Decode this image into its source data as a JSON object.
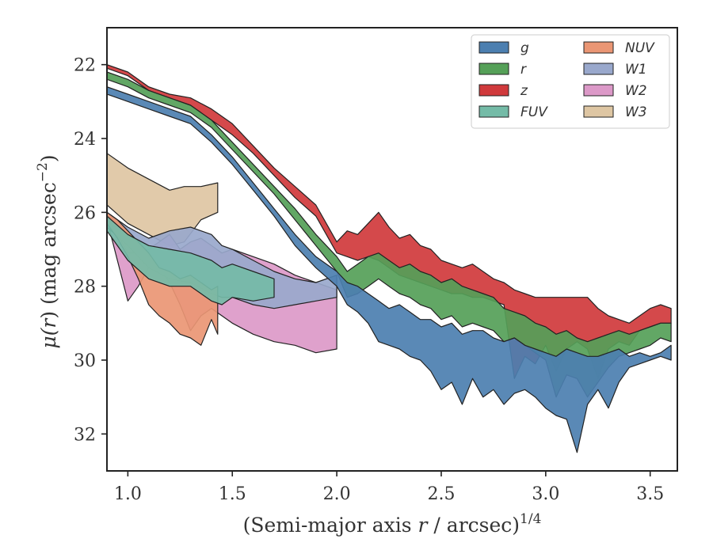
{
  "chart_data": {
    "type": "area",
    "title": "",
    "xlabel": "(Semi-major axis r / arcsec)",
    "xlabel_parts": {
      "pre": "(Semi-major axis ",
      "var": "r",
      "post": " / arcsec)",
      "sup": "1/4"
    },
    "ylabel": "μ(r) (mag arcsec⁻²)",
    "ylabel_parts": {
      "mu": "μ(",
      "var": "r",
      "mid": ") (mag arcsec",
      "sup": "−2",
      "end": ")"
    },
    "xlim": [
      0.9,
      3.63
    ],
    "ylim": [
      33.0,
      21.0
    ],
    "y_inverted": true,
    "xticks": [
      1.0,
      1.5,
      2.0,
      2.5,
      3.0,
      3.5
    ],
    "xtick_labels": [
      "1.0",
      "1.5",
      "2.0",
      "2.5",
      "3.0",
      "3.5"
    ],
    "yticks": [
      22,
      24,
      26,
      28,
      30,
      32
    ],
    "ytick_labels": [
      "22",
      "24",
      "26",
      "28",
      "30",
      "32"
    ],
    "grid": false,
    "legend": {
      "placement": "top-right",
      "columns": 2
    },
    "series": [
      {
        "name": "g",
        "color": "#4c7fb0",
        "x": [
          0.9,
          1.0,
          1.1,
          1.2,
          1.3,
          1.4,
          1.5,
          1.6,
          1.7,
          1.8,
          1.9,
          2.0,
          2.05,
          2.1,
          2.15,
          2.2,
          2.25,
          2.3,
          2.35,
          2.4,
          2.45,
          2.5,
          2.55,
          2.6,
          2.65,
          2.7,
          2.75,
          2.8,
          2.85,
          2.9,
          2.95,
          3.0,
          3.05,
          3.1,
          3.15,
          3.2,
          3.25,
          3.3,
          3.35,
          3.4,
          3.45,
          3.5,
          3.55,
          3.6
        ],
        "y1": [
          22.6,
          22.8,
          23.0,
          23.2,
          23.4,
          23.9,
          24.5,
          25.2,
          25.9,
          26.6,
          27.2,
          27.6,
          27.9,
          28.0,
          28.2,
          28.4,
          28.6,
          28.5,
          28.7,
          28.9,
          28.9,
          29.1,
          29.0,
          29.3,
          29.2,
          29.2,
          29.4,
          29.5,
          29.4,
          29.6,
          29.7,
          29.8,
          29.9,
          29.7,
          29.8,
          29.9,
          29.9,
          29.8,
          29.7,
          29.9,
          29.8,
          29.9,
          29.8,
          29.6
        ],
        "y2": [
          22.8,
          23.0,
          23.2,
          23.4,
          23.6,
          24.1,
          24.7,
          25.4,
          26.1,
          26.9,
          27.5,
          28.0,
          28.5,
          28.7,
          29.0,
          29.5,
          29.6,
          29.7,
          29.9,
          30.0,
          30.3,
          30.8,
          30.6,
          31.2,
          30.5,
          31.0,
          30.8,
          31.2,
          30.9,
          30.8,
          31.0,
          31.3,
          31.5,
          31.6,
          32.5,
          31.2,
          30.8,
          31.3,
          30.6,
          30.2,
          30.1,
          30.0,
          29.9,
          30.0
        ]
      },
      {
        "name": "r",
        "color": "#55a058",
        "x": [
          0.9,
          1.0,
          1.1,
          1.2,
          1.3,
          1.4,
          1.5,
          1.6,
          1.7,
          1.8,
          1.9,
          2.0,
          2.05,
          2.1,
          2.15,
          2.2,
          2.25,
          2.3,
          2.35,
          2.4,
          2.45,
          2.5,
          2.55,
          2.6,
          2.65,
          2.7,
          2.75,
          2.8,
          2.85,
          2.9,
          2.95,
          3.0,
          3.05,
          3.1,
          3.15,
          3.2,
          3.25,
          3.3,
          3.35,
          3.4,
          3.45,
          3.5,
          3.55,
          3.6
        ],
        "y1": [
          22.2,
          22.4,
          22.7,
          22.9,
          23.1,
          23.5,
          24.1,
          24.7,
          25.3,
          25.9,
          26.6,
          27.2,
          27.6,
          27.4,
          27.2,
          27.1,
          27.3,
          27.5,
          27.4,
          27.6,
          27.7,
          27.9,
          27.8,
          28.0,
          28.1,
          28.2,
          28.3,
          28.6,
          28.7,
          28.8,
          29.0,
          29.1,
          29.3,
          29.2,
          29.4,
          29.5,
          29.4,
          29.3,
          29.2,
          29.3,
          29.2,
          29.1,
          29.0,
          29.0
        ],
        "y2": [
          22.4,
          22.6,
          22.9,
          23.1,
          23.3,
          23.7,
          24.3,
          24.9,
          25.5,
          26.2,
          26.9,
          27.6,
          28.3,
          28.2,
          28.0,
          27.8,
          28.0,
          28.2,
          28.3,
          28.5,
          28.6,
          28.9,
          28.8,
          29.1,
          29.0,
          29.1,
          29.2,
          29.5,
          29.4,
          29.6,
          29.8,
          30.0,
          31.0,
          30.4,
          30.5,
          31.0,
          30.6,
          30.2,
          29.9,
          29.8,
          29.7,
          29.6,
          29.4,
          29.5
        ]
      },
      {
        "name": "z",
        "color": "#d03a3c",
        "x": [
          0.9,
          1.0,
          1.1,
          1.2,
          1.3,
          1.4,
          1.5,
          1.6,
          1.7,
          1.8,
          1.9,
          2.0,
          2.05,
          2.1,
          2.15,
          2.2,
          2.25,
          2.3,
          2.35,
          2.4,
          2.45,
          2.5,
          2.55,
          2.6,
          2.65,
          2.7,
          2.75,
          2.8,
          2.85,
          2.9,
          2.95,
          3.0,
          3.05,
          3.1,
          3.15,
          3.2,
          3.25,
          3.3,
          3.35,
          3.4,
          3.45,
          3.5,
          3.55,
          3.6
        ],
        "y1": [
          22.0,
          22.2,
          22.6,
          22.8,
          22.9,
          23.2,
          23.6,
          24.2,
          24.8,
          25.3,
          25.8,
          26.8,
          26.5,
          26.6,
          26.3,
          26.0,
          26.4,
          26.7,
          26.6,
          26.9,
          27.0,
          27.3,
          27.4,
          27.5,
          27.4,
          27.6,
          27.8,
          27.9,
          28.1,
          28.2,
          28.3,
          28.3,
          28.3,
          28.3,
          28.3,
          28.3,
          28.6,
          28.8,
          28.9,
          29.0,
          28.8,
          28.6,
          28.5,
          28.6
        ],
        "y2": [
          22.1,
          22.3,
          22.7,
          22.9,
          23.1,
          23.5,
          23.9,
          24.4,
          25.0,
          25.6,
          26.1,
          27.1,
          27.2,
          27.3,
          27.2,
          27.3,
          27.5,
          27.7,
          27.8,
          27.9,
          28.0,
          28.1,
          28.2,
          28.2,
          28.3,
          28.3,
          28.4,
          28.5,
          30.5,
          29.9,
          30.1,
          29.6,
          30.3,
          29.7,
          29.5,
          29.7,
          30.5,
          29.7,
          29.5,
          29.6,
          29.2,
          29.1,
          29.0,
          29.0
        ]
      },
      {
        "name": "FUV",
        "color": "#74bba7",
        "x": [
          0.9,
          1.0,
          1.1,
          1.2,
          1.3,
          1.4,
          1.45,
          1.5,
          1.6,
          1.7
        ],
        "y1": [
          26.1,
          26.6,
          26.9,
          27.0,
          27.1,
          27.3,
          27.5,
          27.4,
          27.6,
          27.8
        ],
        "y2": [
          26.5,
          27.3,
          27.8,
          28.0,
          28.0,
          28.4,
          28.5,
          28.3,
          28.4,
          28.3
        ]
      },
      {
        "name": "NUV",
        "color": "#ea9674",
        "x": [
          0.9,
          0.95,
          1.0,
          1.05,
          1.1,
          1.15,
          1.2,
          1.25,
          1.3,
          1.35,
          1.4,
          1.43
        ],
        "y1": [
          26.0,
          26.2,
          26.5,
          26.8,
          27.1,
          27.5,
          27.6,
          27.8,
          27.7,
          27.9,
          28.1,
          28.0
        ],
        "y2": [
          26.3,
          26.7,
          27.2,
          27.8,
          28.5,
          28.8,
          29.0,
          29.3,
          29.4,
          29.6,
          28.9,
          29.3
        ]
      },
      {
        "name": "W1",
        "color": "#99a8cc",
        "x": [
          0.9,
          1.0,
          1.1,
          1.2,
          1.3,
          1.4,
          1.45,
          1.5,
          1.6,
          1.7,
          1.8,
          1.9,
          2.0
        ],
        "y1": [
          26.0,
          26.4,
          26.7,
          26.5,
          26.4,
          26.6,
          26.9,
          27.0,
          27.3,
          27.6,
          27.8,
          27.9,
          27.7
        ],
        "y2": [
          26.4,
          26.9,
          27.5,
          27.8,
          27.9,
          28.2,
          28.3,
          28.3,
          28.5,
          28.6,
          28.5,
          28.4,
          28.3
        ]
      },
      {
        "name": "W2",
        "color": "#dc99c8",
        "x": [
          0.9,
          0.95,
          1.0,
          1.05,
          1.1,
          1.15,
          1.2,
          1.25,
          1.3,
          1.35,
          1.4,
          1.45,
          1.5,
          1.6,
          1.7,
          1.8,
          1.9,
          2.0
        ],
        "y1": [
          26.1,
          26.6,
          27.1,
          27.1,
          27.0,
          26.8,
          26.6,
          27.0,
          26.8,
          26.7,
          26.9,
          27.1,
          27.0,
          27.2,
          27.4,
          27.7,
          27.9,
          28.1
        ],
        "y2": [
          26.2,
          27.3,
          28.4,
          28.0,
          27.5,
          27.5,
          27.9,
          28.5,
          29.2,
          28.8,
          28.6,
          28.8,
          29.0,
          29.3,
          29.5,
          29.6,
          29.8,
          29.7
        ]
      },
      {
        "name": "W3",
        "color": "#dec6a3",
        "x": [
          0.9,
          1.0,
          1.1,
          1.2,
          1.27,
          1.35,
          1.43
        ],
        "y1": [
          24.4,
          24.8,
          25.1,
          25.4,
          25.3,
          25.3,
          25.2
        ],
        "y2": [
          25.8,
          26.3,
          26.6,
          26.9,
          26.8,
          26.2,
          26.0
        ]
      }
    ]
  }
}
